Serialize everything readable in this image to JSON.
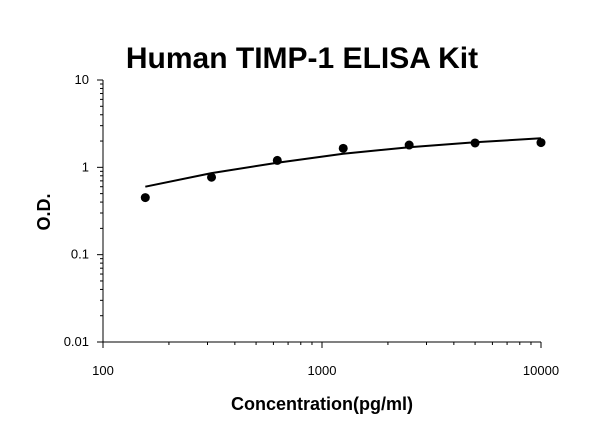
{
  "chart_data": {
    "type": "scatter",
    "title": "Human TIMP-1 ELISA Kit",
    "xlabel": "Concentration(pg/ml)",
    "ylabel": "O.D.",
    "x_scale": "log",
    "y_scale": "log",
    "xlim": [
      100,
      10000
    ],
    "ylim": [
      0.01,
      10
    ],
    "x_ticks": [
      {
        "value": 100,
        "label": "100"
      },
      {
        "value": 1000,
        "label": "1000"
      },
      {
        "value": 10000,
        "label": "10000"
      }
    ],
    "y_ticks": [
      {
        "value": 10,
        "label": "10"
      },
      {
        "value": 1,
        "label": "1"
      },
      {
        "value": 0.1,
        "label": "0.1"
      },
      {
        "value": 0.01,
        "label": "0.01"
      }
    ],
    "grid": false,
    "legend": "none",
    "series": [
      {
        "kind": "points",
        "x": [
          156,
          313,
          625,
          1250,
          2500,
          5000,
          10000
        ],
        "y": [
          0.45,
          0.77,
          1.2,
          1.65,
          1.8,
          1.9,
          1.92
        ]
      },
      {
        "kind": "fit-line",
        "x": [
          156,
          313,
          625,
          1250,
          2500,
          5000,
          10000
        ],
        "y": [
          0.6,
          0.86,
          1.13,
          1.43,
          1.7,
          1.94,
          2.15
        ]
      }
    ],
    "colors": {
      "points": "#000000",
      "line": "#000000",
      "axis": "#000000"
    }
  }
}
